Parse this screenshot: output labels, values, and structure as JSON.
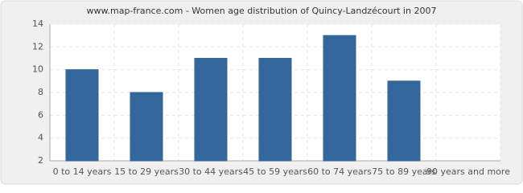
{
  "chart_data": {
    "type": "bar",
    "title": "www.map-france.com - Women age distribution of Quincy-Landzécourt in 2007",
    "categories": [
      "0 to 14 years",
      "15 to 29 years",
      "30 to 44 years",
      "45 to 59 years",
      "60 to 74 years",
      "75 to 89 years",
      "90 years and more"
    ],
    "values": [
      10,
      8,
      11,
      11,
      13,
      9,
      2
    ],
    "color": "#336699",
    "ylim": [
      2,
      14
    ],
    "yticks": [
      2,
      4,
      6,
      8,
      10,
      12,
      14
    ],
    "grid": true
  }
}
